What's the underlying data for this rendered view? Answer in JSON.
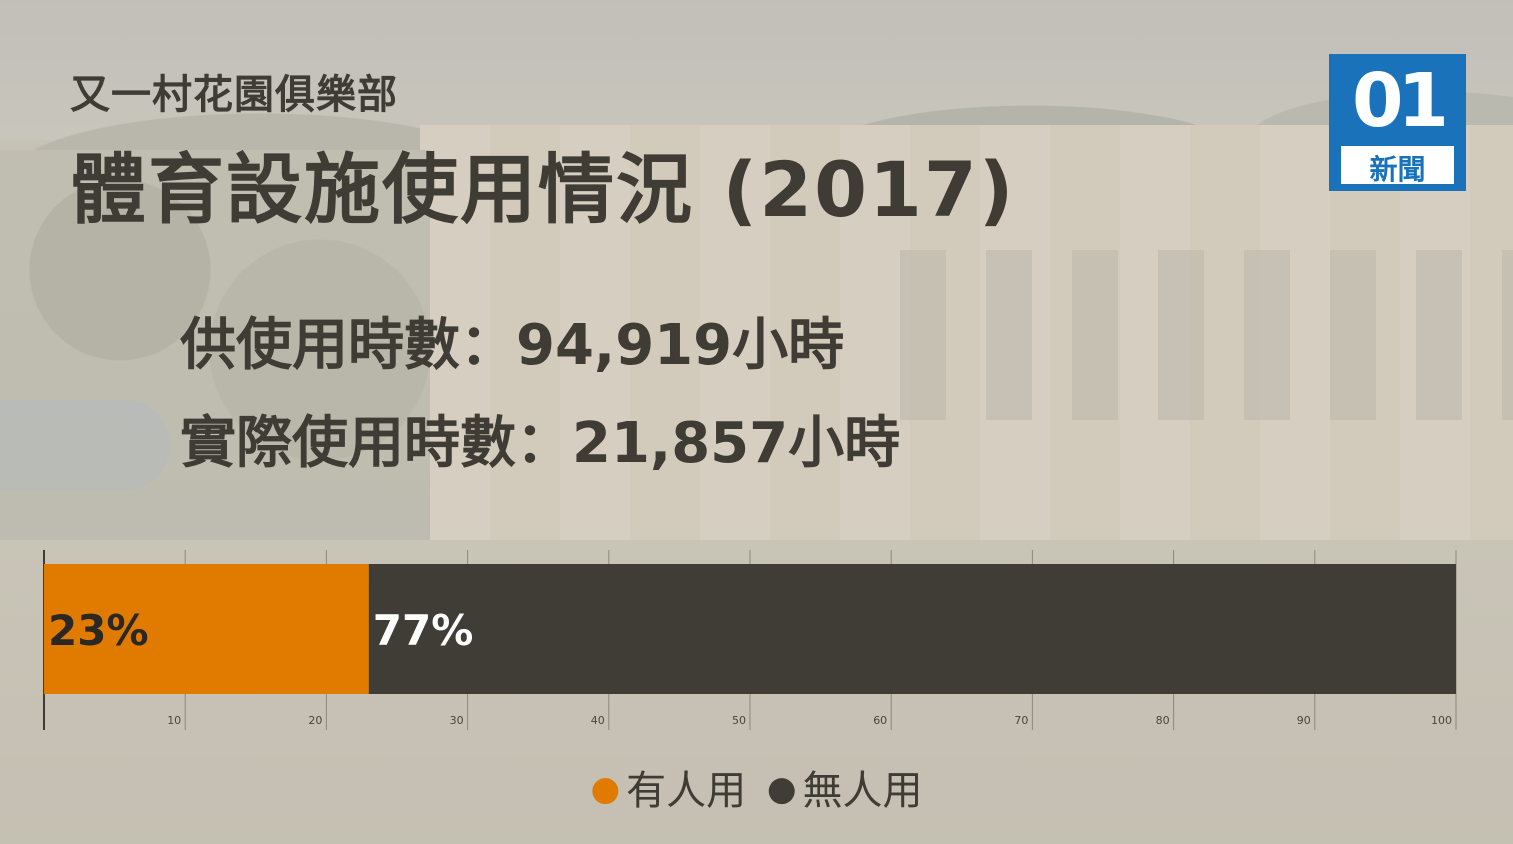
{
  "header": {
    "subtitle": "又一村花園俱樂部",
    "title": "體育設施使用情況 (2017)"
  },
  "stats": {
    "available_hours": "供使用時數：94,919小時",
    "actual_hours": "實際使用時數：21,857小時"
  },
  "logo": {
    "number": "01",
    "text": "新聞"
  },
  "colors": {
    "used": "#e07b00",
    "unused": "#403d37",
    "text": "#3f3c36",
    "logo": "#1a72bb"
  },
  "chart_data": {
    "type": "bar",
    "orientation": "horizontal-stacked",
    "xlim": [
      0,
      100
    ],
    "ticks": [
      10,
      20,
      30,
      40,
      50,
      60,
      70,
      80,
      90,
      100
    ],
    "series": [
      {
        "name": "有人用",
        "value": 23,
        "label": "23%",
        "color": "#e07b00"
      },
      {
        "name": "無人用",
        "value": 77,
        "label": "77%",
        "color": "#403d37"
      }
    ],
    "legend": "bottom-center",
    "grid": true
  }
}
